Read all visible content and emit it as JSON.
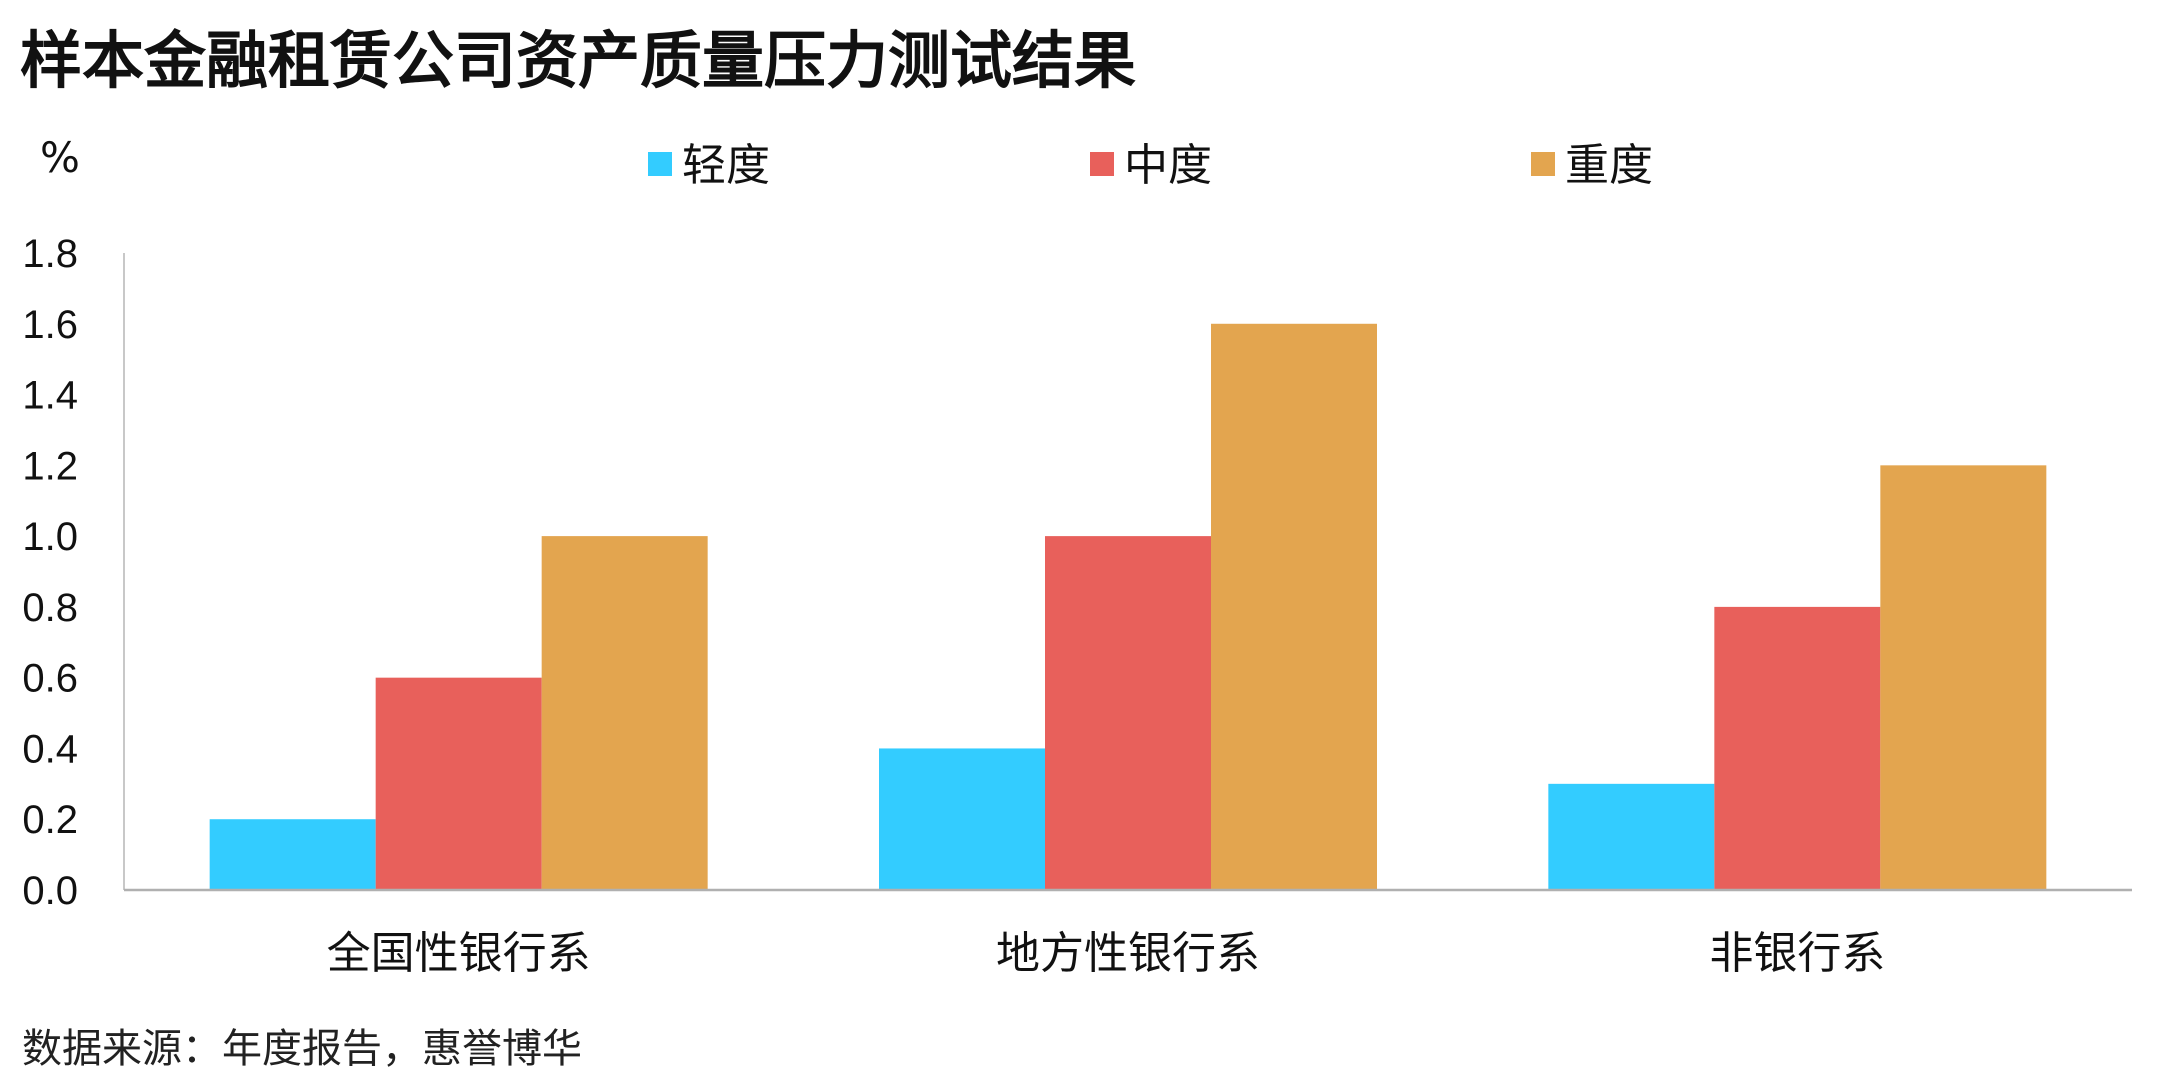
{
  "chart_data": {
    "type": "bar",
    "title": "样本金融租赁公司资产质量压力测试结果",
    "unit": "%",
    "categories": [
      "全国性银行系",
      "地方性银行系",
      "非银行系"
    ],
    "series": [
      {
        "name": "轻度",
        "color": "#33CCFF",
        "values": [
          0.2,
          0.4,
          0.3
        ]
      },
      {
        "name": "中度",
        "color": "#E8605B",
        "values": [
          0.6,
          1.0,
          0.8
        ]
      },
      {
        "name": "重度",
        "color": "#E3A54F",
        "values": [
          1.0,
          1.6,
          1.2
        ]
      }
    ],
    "yticks": [
      "0.0",
      "0.2",
      "0.4",
      "0.6",
      "0.8",
      "1.0",
      "1.2",
      "1.4",
      "1.6",
      "1.8"
    ],
    "ylim": [
      0,
      1.8
    ],
    "grid": false,
    "legend_position": "top",
    "source": "数据来源：年度报告，惠誉博华"
  }
}
